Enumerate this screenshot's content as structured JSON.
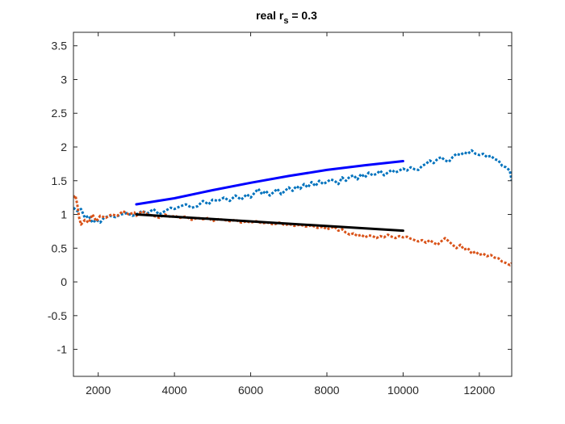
{
  "chart_data": {
    "type": "line",
    "title": "real r",
    "title_subscript": "s",
    "title_suffix": " = 0.3",
    "xlabel": "",
    "ylabel": "",
    "xlim": [
      1350,
      12850
    ],
    "ylim": [
      -1.4,
      3.7
    ],
    "x_ticks": [
      2000,
      4000,
      6000,
      8000,
      10000,
      12000
    ],
    "x_tick_labels": [
      "2000",
      "4000",
      "6000",
      "8000",
      "10000",
      "12000"
    ],
    "y_ticks": [
      -1,
      -0.5,
      0,
      0.5,
      1,
      1.5,
      2,
      2.5,
      3,
      3.5
    ],
    "y_tick_labels": [
      "-1",
      "-0.5",
      "0",
      "0.5",
      "1",
      "1.5",
      "2",
      "2.5",
      "3",
      "3.5"
    ],
    "grid": false,
    "box": true,
    "series": [
      {
        "style": "dotted",
        "color": "#0072BD",
        "x": [
          1350,
          1450,
          1550,
          1650,
          1750,
          1850,
          1950,
          2050,
          2150,
          2300,
          2450,
          2600,
          2750,
          2900,
          3000,
          3150,
          3300,
          3450,
          3600,
          3750,
          3900,
          4000,
          4150,
          4300,
          4450,
          4600,
          4750,
          4900,
          5000,
          5150,
          5300,
          5450,
          5600,
          5750,
          5900,
          6000,
          6100,
          6200,
          6300,
          6400,
          6500,
          6600,
          6700,
          6800,
          6900,
          7000,
          7100,
          7200,
          7300,
          7400,
          7500,
          7600,
          7700,
          7800,
          7900,
          8000,
          8100,
          8200,
          8300,
          8400,
          8500,
          8600,
          8700,
          8800,
          8900,
          9000,
          9100,
          9200,
          9300,
          9400,
          9500,
          9600,
          9700,
          9800,
          9900,
          10000,
          10100,
          10200,
          10300,
          10400,
          10500,
          10600,
          10700,
          10800,
          10900,
          11000,
          11100,
          11200,
          11300,
          11400,
          11500,
          11600,
          11700,
          11800,
          11900,
          12000,
          12100,
          12200,
          12300,
          12400,
          12500,
          12600,
          12700,
          12800,
          12850
        ],
        "y": [
          1.1,
          1.05,
          1.08,
          0.95,
          0.98,
          0.88,
          0.92,
          0.88,
          0.95,
          0.98,
          0.96,
          1.0,
          1.02,
          0.98,
          1.0,
          1.05,
          1.02,
          1.08,
          1.0,
          1.05,
          1.1,
          1.08,
          1.12,
          1.15,
          1.1,
          1.12,
          1.2,
          1.15,
          1.22,
          1.2,
          1.25,
          1.2,
          1.28,
          1.22,
          1.3,
          1.25,
          1.32,
          1.38,
          1.3,
          1.35,
          1.28,
          1.33,
          1.38,
          1.3,
          1.35,
          1.4,
          1.35,
          1.42,
          1.38,
          1.45,
          1.4,
          1.48,
          1.42,
          1.5,
          1.45,
          1.48,
          1.52,
          1.5,
          1.45,
          1.55,
          1.5,
          1.56,
          1.58,
          1.52,
          1.6,
          1.55,
          1.62,
          1.58,
          1.6,
          1.65,
          1.58,
          1.62,
          1.66,
          1.62,
          1.65,
          1.68,
          1.65,
          1.7,
          1.67,
          1.66,
          1.72,
          1.75,
          1.8,
          1.76,
          1.82,
          1.85,
          1.8,
          1.78,
          1.85,
          1.9,
          1.88,
          1.92,
          1.9,
          1.95,
          1.9,
          1.88,
          1.9,
          1.85,
          1.87,
          1.82,
          1.8,
          1.72,
          1.7,
          1.65,
          1.5
        ]
      },
      {
        "style": "dotted",
        "color": "#D95319",
        "x": [
          1350,
          1400,
          1450,
          1500,
          1550,
          1650,
          1750,
          1850,
          1950,
          2050,
          2200,
          2350,
          2500,
          2650,
          2800,
          2950,
          3000,
          3150,
          3300,
          3450,
          3600,
          3750,
          3900,
          4000,
          4150,
          4300,
          4450,
          4600,
          4750,
          4900,
          5000,
          5150,
          5300,
          5450,
          5600,
          5750,
          5900,
          6000,
          6150,
          6300,
          6450,
          6600,
          6750,
          6900,
          7000,
          7150,
          7300,
          7450,
          7600,
          7750,
          7900,
          8000,
          8100,
          8200,
          8300,
          8400,
          8500,
          8600,
          8700,
          8800,
          8900,
          9000,
          9100,
          9200,
          9300,
          9400,
          9500,
          9600,
          9700,
          9800,
          9900,
          10000,
          10100,
          10200,
          10300,
          10400,
          10500,
          10600,
          10700,
          10800,
          10900,
          11000,
          11100,
          11200,
          11300,
          11400,
          11500,
          11600,
          11700,
          11800,
          11900,
          12000,
          12100,
          12200,
          12300,
          12400,
          12500,
          12600,
          12700,
          12800,
          12850
        ],
        "y": [
          1.25,
          1.28,
          1.15,
          0.95,
          0.85,
          0.92,
          0.88,
          1.0,
          0.9,
          0.98,
          0.95,
          1.0,
          0.98,
          1.05,
          1.0,
          1.03,
          0.98,
          1.05,
          1.0,
          0.98,
          0.95,
          1.0,
          0.96,
          0.98,
          0.95,
          0.97,
          0.92,
          0.95,
          0.93,
          0.95,
          0.9,
          0.93,
          0.92,
          0.9,
          0.92,
          0.88,
          0.9,
          0.88,
          0.9,
          0.87,
          0.88,
          0.85,
          0.88,
          0.84,
          0.86,
          0.83,
          0.85,
          0.82,
          0.84,
          0.8,
          0.82,
          0.78,
          0.8,
          0.82,
          0.76,
          0.78,
          0.73,
          0.7,
          0.72,
          0.68,
          0.7,
          0.66,
          0.69,
          0.68,
          0.65,
          0.68,
          0.66,
          0.7,
          0.67,
          0.65,
          0.68,
          0.66,
          0.67,
          0.64,
          0.62,
          0.6,
          0.62,
          0.58,
          0.62,
          0.58,
          0.55,
          0.6,
          0.65,
          0.6,
          0.55,
          0.5,
          0.55,
          0.48,
          0.5,
          0.42,
          0.45,
          0.4,
          0.42,
          0.38,
          0.4,
          0.36,
          0.35,
          0.3,
          0.28,
          0.25,
          0.28
        ]
      },
      {
        "style": "solid",
        "color": "#0000FF",
        "x": [
          3000,
          4000,
          5000,
          6000,
          7000,
          8000,
          9000,
          10000
        ],
        "y": [
          1.15,
          1.24,
          1.36,
          1.47,
          1.57,
          1.66,
          1.73,
          1.79
        ]
      },
      {
        "style": "solid",
        "color": "#000000",
        "x": [
          3000,
          10000
        ],
        "y": [
          1.0,
          0.76
        ]
      }
    ]
  }
}
